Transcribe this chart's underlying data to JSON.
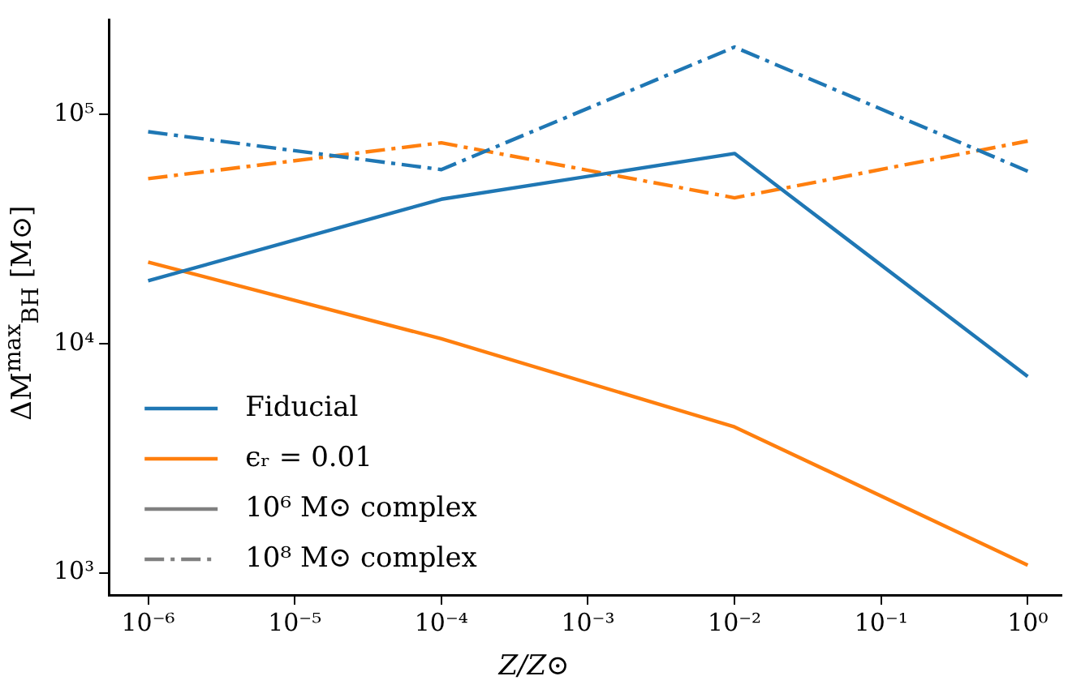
{
  "chart_data": {
    "type": "line",
    "xlabel": "Z/Z⊙",
    "ylabel": "ΔM$^{max}$$_{BH}$ [M⊙]",
    "x": [
      1e-06,
      0.0001,
      0.01,
      1
    ],
    "series": [
      {
        "name": "Fiducial",
        "color": "#1f77b4",
        "line_style": "solid",
        "values": [
          18800,
          42700,
          67600,
          7180
        ]
      },
      {
        "name": "ϵᵣ = 0.01",
        "color": "#ff7f0e",
        "line_style": "solid",
        "values": [
          22700,
          10500,
          4330,
          1080
        ]
      },
      {
        "color": "#1f77b4",
        "line_style": "dashed",
        "values": [
          84100,
          57500,
          197000,
          56600
        ]
      },
      {
        "color": "#ff7f0e",
        "line_style": "dashed",
        "values": [
          52500,
          75300,
          43300,
          76600
        ]
      },
      {
        "name": "10⁶ M⊙ complex",
        "color": "#808080",
        "line_style": "solid",
        "values": [
          null,
          null,
          null,
          null
        ]
      },
      {
        "name": "10⁸ M⊙ complex",
        "color": "#808080",
        "line_style": "dashed",
        "values": [
          null,
          null,
          null,
          null
        ]
      }
    ],
    "log": "xy",
    "xlim": [
      5.4e-07,
      1.7
    ],
    "ylim": [
      800,
      260000
    ],
    "xticks": [
      {
        "value": 1e-06,
        "label": "10⁻⁶"
      },
      {
        "value": 1e-05,
        "label": "10⁻⁵"
      },
      {
        "value": 0.0001,
        "label": "10⁻⁴"
      },
      {
        "value": 0.001,
        "label": "10⁻³"
      },
      {
        "value": 0.01,
        "label": "10⁻²"
      },
      {
        "value": 0.1,
        "label": "10⁻¹"
      },
      {
        "value": 1,
        "label": "10⁰"
      }
    ],
    "yticks": [
      {
        "value": 1000,
        "label": "10³"
      },
      {
        "value": 10000,
        "label": "10⁴"
      },
      {
        "value": 100000,
        "label": "10⁵"
      }
    ],
    "grid": false,
    "legend": "bottom left",
    "marker": "none"
  }
}
